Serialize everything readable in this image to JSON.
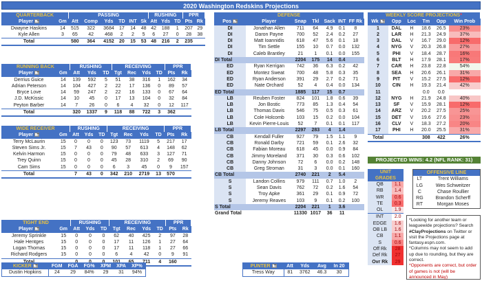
{
  "title": "2020 Washington Redskins Projections",
  "colors": {
    "header_blue": "#4472c4",
    "section_gold": "#e8c141",
    "subtotal": "#b4c6e7",
    "green": "#548235"
  },
  "qb": {
    "section": "QUARTERBACK",
    "groups": [
      "PASSING",
      "RUSHING",
      "PPR"
    ],
    "columns": [
      "Player",
      "Gm",
      "Att",
      "Comp",
      "Yds",
      "TD",
      "INT",
      "Sk",
      "Att",
      "Yds",
      "TD",
      "Pts",
      "Rk"
    ],
    "rows": [
      [
        "Dwayne Haskins",
        "14",
        "515",
        "322",
        "3684",
        "17",
        "14",
        "48",
        "42",
        "188",
        "1",
        "207",
        "29"
      ],
      [
        "Kyle Allen",
        "3",
        "65",
        "42",
        "468",
        "2",
        "2",
        "5",
        "6",
        "27",
        "0",
        "28",
        "38"
      ]
    ],
    "total": [
      "Total",
      "",
      "580",
      "364",
      "4152",
      "20",
      "15",
      "53",
      "48",
      "216",
      "2",
      "235",
      ""
    ]
  },
  "rb": {
    "section": "RUNNING BACK",
    "groups": [
      "RUSHING",
      "RECEIVING",
      "PPR"
    ],
    "columns": [
      "Player",
      "Gm",
      "Att",
      "Yds",
      "TD",
      "Tgt",
      "Rec",
      "Yds",
      "TD",
      "Pts",
      "Rk"
    ],
    "rows": [
      [
        "Derrius Guice",
        "14",
        "139",
        "592",
        "5",
        "51",
        "38",
        "316",
        "1",
        "162",
        "34"
      ],
      [
        "Adrian Peterson",
        "14",
        "104",
        "427",
        "2",
        "22",
        "17",
        "136",
        "0",
        "89",
        "57"
      ],
      [
        "Bryce Love",
        "14",
        "59",
        "247",
        "2",
        "22",
        "16",
        "133",
        "0",
        "67",
        "64"
      ],
      [
        "J.D. McKissic",
        "14",
        "10",
        "45",
        "0",
        "17",
        "13",
        "104",
        "0",
        "32",
        "84"
      ],
      [
        "Peyton Barber",
        "14",
        "7",
        "26",
        "0",
        "6",
        "4",
        "32",
        "0",
        "12",
        "117"
      ]
    ],
    "total": [
      "Total",
      "",
      "320",
      "1337",
      "9",
      "118",
      "88",
      "722",
      "3",
      "362",
      ""
    ]
  },
  "wr": {
    "section": "WIDE RECEIVER",
    "groups": [
      "RUSHING",
      "RECEIVING",
      "PPR"
    ],
    "columns": [
      "Player",
      "Gm",
      "Att",
      "Yds",
      "TD",
      "Tgt",
      "Rec",
      "Yds",
      "TD",
      "Pts",
      "Rk"
    ],
    "rows": [
      [
        "Terry McLaurin",
        "15",
        "0",
        "0",
        "0",
        "123",
        "73",
        "1119",
        "5",
        "217",
        "17"
      ],
      [
        "Steven Sims Jr.",
        "15",
        "7",
        "43",
        "0",
        "90",
        "57",
        "613",
        "4",
        "148",
        "62"
      ],
      [
        "Kelvin Harmon",
        "15",
        "0",
        "0",
        "0",
        "79",
        "48",
        "633",
        "3",
        "127",
        "71"
      ],
      [
        "Trey Quinn",
        "15",
        "0",
        "0",
        "0",
        "45",
        "28",
        "310",
        "2",
        "69",
        "90"
      ],
      [
        "Cam Sims",
        "15",
        "0",
        "0",
        "0",
        "6",
        "3",
        "45",
        "0",
        "9",
        "157"
      ]
    ],
    "total": [
      "Total",
      "",
      "7",
      "43",
      "0",
      "342",
      "210",
      "2719",
      "13",
      "570",
      ""
    ]
  },
  "te": {
    "section": "TIGHT END",
    "groups": [
      "RUSHING",
      "RECEIVING",
      "PPR"
    ],
    "columns": [
      "Player",
      "Gm",
      "Att",
      "Yds",
      "TD",
      "Tgt",
      "Rec",
      "Yds",
      "TD",
      "Pts",
      "Rk"
    ],
    "rows": [
      [
        "Jeremy Sprinkle",
        "15",
        "0",
        "0",
        "0",
        "62",
        "40",
        "425",
        "2",
        "97",
        "28"
      ],
      [
        "Hale Hentges",
        "15",
        "0",
        "0",
        "0",
        "17",
        "11",
        "126",
        "1",
        "27",
        "64"
      ],
      [
        "Logan Thomas",
        "15",
        "0",
        "0",
        "0",
        "17",
        "11",
        "118",
        "1",
        "27",
        "66"
      ],
      [
        "Richard Rodgers",
        "15",
        "0",
        "0",
        "0",
        "6",
        "4",
        "42",
        "0",
        "9",
        "91"
      ]
    ],
    "total": [
      "Total",
      "",
      "0",
      "0",
      "0",
      "101",
      "65",
      "711",
      "4",
      "160",
      ""
    ]
  },
  "kicker": {
    "section": "KICKER",
    "columns": [
      "FGM",
      "FGA",
      "FG%",
      "XPM",
      "XPA",
      "XP%"
    ],
    "row": [
      "Dustin Hopkins",
      "24",
      "29",
      "84%",
      "29",
      "31",
      "94%"
    ]
  },
  "punter": {
    "section": "PUNTER",
    "columns": [
      "Att",
      "Yds",
      "Avg",
      "In 20"
    ],
    "row": [
      "Tress Way",
      "81",
      "3762",
      "46.3",
      "30"
    ]
  },
  "defense": {
    "section": "DEFENSE",
    "columns": [
      "Pos",
      "Player",
      "Snap",
      "Tkl",
      "Sack",
      "INT",
      "FF Rk"
    ],
    "rows": [
      {
        "t": "r",
        "v": [
          "DI",
          "Jonathan Allen",
          "711",
          "64",
          "4.9",
          "0.1",
          "8"
        ]
      },
      {
        "t": "r",
        "v": [
          "DI",
          "Daron Payne",
          "700",
          "52",
          "2.4",
          "0.2",
          "27"
        ]
      },
      {
        "t": "r",
        "v": [
          "DI",
          "Matt Ioannidis",
          "618",
          "47",
          "5.6",
          "0.1",
          "18"
        ]
      },
      {
        "t": "r",
        "v": [
          "DI",
          "Tim Settle",
          "155",
          "10",
          "0.7",
          "0.0",
          "132"
        ]
      },
      {
        "t": "r",
        "v": [
          "DI",
          "Caleb Brantley",
          "21",
          "1",
          "0.1",
          "0.0",
          "155"
        ]
      },
      {
        "t": "s",
        "v": [
          "DI Total",
          "",
          "2204",
          "175",
          "14",
          "0.4",
          ""
        ]
      },
      {
        "t": "r",
        "v": [
          "ED",
          "Ryan Kerrigan",
          "742",
          "36",
          "6.3",
          "0.2",
          "42"
        ]
      },
      {
        "t": "r",
        "v": [
          "ED",
          "Montez Sweat",
          "700",
          "48",
          "5.8",
          "0.3",
          "35"
        ]
      },
      {
        "t": "r",
        "v": [
          "ED",
          "Ryan Anderson",
          "391",
          "29",
          "2.7",
          "0.2",
          "71"
        ]
      },
      {
        "t": "r",
        "v": [
          "ED",
          "Nate Orchard",
          "52",
          "4",
          "0.4",
          "0.0",
          "134"
        ]
      },
      {
        "t": "s",
        "v": [
          "ED Total",
          "",
          "1885",
          "117",
          "15",
          "0.7",
          ""
        ]
      },
      {
        "t": "r",
        "v": [
          "LB",
          "Reuben Foster",
          "824",
          "101",
          "1.8",
          "0.6",
          "39"
        ]
      },
      {
        "t": "r",
        "v": [
          "LB",
          "Jon Bostic",
          "773",
          "85",
          "1.3",
          "0.4",
          "54"
        ]
      },
      {
        "t": "r",
        "v": [
          "LB",
          "Thomas Davis",
          "546",
          "75",
          "0.5",
          "0.3",
          "61"
        ]
      },
      {
        "t": "r",
        "v": [
          "LB",
          "Cole Holcomb",
          "103",
          "15",
          "0.2",
          "0.0",
          "104"
        ]
      },
      {
        "t": "r",
        "v": [
          "LB",
          "Kevin Pierre-Louis",
          "52",
          "7",
          "0.1",
          "0.1",
          "117"
        ]
      },
      {
        "t": "s",
        "v": [
          "LB Total",
          "",
          "2297",
          "283",
          "4",
          "1.4",
          ""
        ]
      },
      {
        "t": "r",
        "v": [
          "CB",
          "Kendall Fuller",
          "927",
          "79",
          "1.5",
          "1.1",
          "9"
        ]
      },
      {
        "t": "r",
        "v": [
          "CB",
          "Ronald Darby",
          "721",
          "59",
          "0.1",
          "2.6",
          "32"
        ]
      },
      {
        "t": "r",
        "v": [
          "CB",
          "Fabian Moreau",
          "618",
          "45",
          "0.0",
          "0.9",
          "84"
        ]
      },
      {
        "t": "r",
        "v": [
          "CB",
          "Jimmy Moreland",
          "371",
          "30",
          "0.3",
          "0.6",
          "102"
        ]
      },
      {
        "t": "r",
        "v": [
          "CB",
          "Danny Johnson",
          "72",
          "6",
          "0.0",
          "0.2",
          "148"
        ]
      },
      {
        "t": "r",
        "v": [
          "CB",
          "Greg Stroman",
          "31",
          "3",
          "0.0",
          "0.1",
          "160"
        ]
      },
      {
        "t": "s",
        "v": [
          "CB Total",
          "",
          "2740",
          "221",
          "2",
          "5.4",
          ""
        ]
      },
      {
        "t": "r",
        "v": [
          "S",
          "Landon Collins",
          "979",
          "111",
          "0.7",
          "1.0",
          "2"
        ]
      },
      {
        "t": "r",
        "v": [
          "S",
          "Sean Davis",
          "762",
          "72",
          "0.2",
          "1.6",
          "54"
        ]
      },
      {
        "t": "r",
        "v": [
          "S",
          "Troy Apke",
          "361",
          "29",
          "0.1",
          "0.9",
          "72"
        ]
      },
      {
        "t": "r",
        "v": [
          "S",
          "Jeremy Reaves",
          "103",
          "9",
          "0.1",
          "0.2",
          "100"
        ]
      },
      {
        "t": "s",
        "v": [
          "S Total",
          "",
          "2204",
          "221",
          "1",
          "3.6",
          ""
        ]
      },
      {
        "t": "g",
        "v": [
          "Grand Total",
          "",
          "11330",
          "1017",
          "36",
          "11",
          ""
        ]
      }
    ]
  },
  "weekly": {
    "section": "WEEKLY SCORE PROJECTIONS",
    "asterisk": "*",
    "columns": [
      "Wk",
      "Opp",
      "Loc",
      "Tm",
      "Opp",
      "Win Prob"
    ],
    "rows": [
      [
        "1",
        "DAL",
        "H",
        "18.6",
        "26.5",
        "23%"
      ],
      [
        "2",
        "LAR",
        "H",
        "21.3",
        "24.9",
        "37%"
      ],
      [
        "3",
        "DAL",
        "V",
        "16.7",
        "29.0",
        "12%"
      ],
      [
        "4",
        "NYG",
        "V",
        "20.3",
        "26.8",
        "27%"
      ],
      [
        "5",
        "PHI",
        "V",
        "18.4",
        "28.7",
        "16%"
      ],
      [
        "6",
        "BLT",
        "H",
        "17.9",
        "28.1",
        "17%"
      ],
      [
        "7",
        "CAR",
        "H",
        "23.8",
        "22.8",
        "54%"
      ],
      [
        "8",
        "SEA",
        "H",
        "20.6",
        "26.1",
        "31%"
      ],
      [
        "9",
        "PIT",
        "V",
        "15.2",
        "27.5",
        "12%"
      ],
      [
        "10",
        "CIN",
        "H",
        "19.3",
        "21.4",
        "42%"
      ],
      [
        "11",
        "",
        "",
        "0.0",
        "0.0",
        ""
      ],
      [
        "12",
        "NYG",
        "H",
        "21.9",
        "24.8",
        "40%"
      ],
      [
        "13",
        "SF",
        "V",
        "15.9",
        "28.1",
        "12%"
      ],
      [
        "14",
        "ARZ",
        "V",
        "20.2",
        "27.5",
        "25%"
      ],
      [
        "15",
        "DET",
        "V",
        "19.6",
        "27.6",
        "23%"
      ],
      [
        "16",
        "CLV",
        "V",
        "18.3",
        "27.2",
        "20%"
      ],
      [
        "17",
        "PHI",
        "H",
        "20.0",
        "25.5",
        "31%"
      ]
    ],
    "total": [
      "Total",
      "",
      "",
      "308",
      "422",
      "26%"
    ],
    "projected_wins": "PROJECTED WINS: 4.2 (NFL RANK: 31)"
  },
  "unit_grades": {
    "section_line1": "UNIT",
    "section_line2": "GRADES",
    "rows": [
      [
        "QB",
        "1.1"
      ],
      [
        "RB",
        "1.4"
      ],
      [
        "WR",
        "0.6"
      ],
      [
        "TE",
        "0.3"
      ],
      [
        "OL",
        "1.9"
      ],
      [
        "INT",
        "2.0"
      ],
      [
        "EDGE",
        "1.6"
      ],
      [
        "OB LB",
        "1.6"
      ],
      [
        "CB",
        "1.1"
      ],
      [
        "S",
        "0.6"
      ]
    ],
    "ranks": [
      [
        "Off Rk",
        "28"
      ],
      [
        "Def Rk",
        "27"
      ],
      [
        "Ovr Rk",
        "29"
      ]
    ]
  },
  "offensive_line": {
    "section": "OFFENSIVE LINE",
    "rows": [
      [
        "LT",
        "Trent Williams"
      ],
      [
        "LG",
        "Wes Schweitzer"
      ],
      [
        "C",
        "Chase Roullier"
      ],
      [
        "RG",
        "Brandon Scherff"
      ],
      [
        "RT",
        "Morgan Moses"
      ]
    ]
  },
  "notes": {
    "line1a": "*Looking for another team or leaguewide projections? Search ",
    "hashtag": "#ClayProjections",
    "line1b": " on Twitter or visit the Projections page at fantasy.espn.com.",
    "line2": "*Columns may not seem to add up due to rounding, but they are correct.",
    "line3": "*Opponents are correct, but order of games is not (will be announced in May)"
  }
}
